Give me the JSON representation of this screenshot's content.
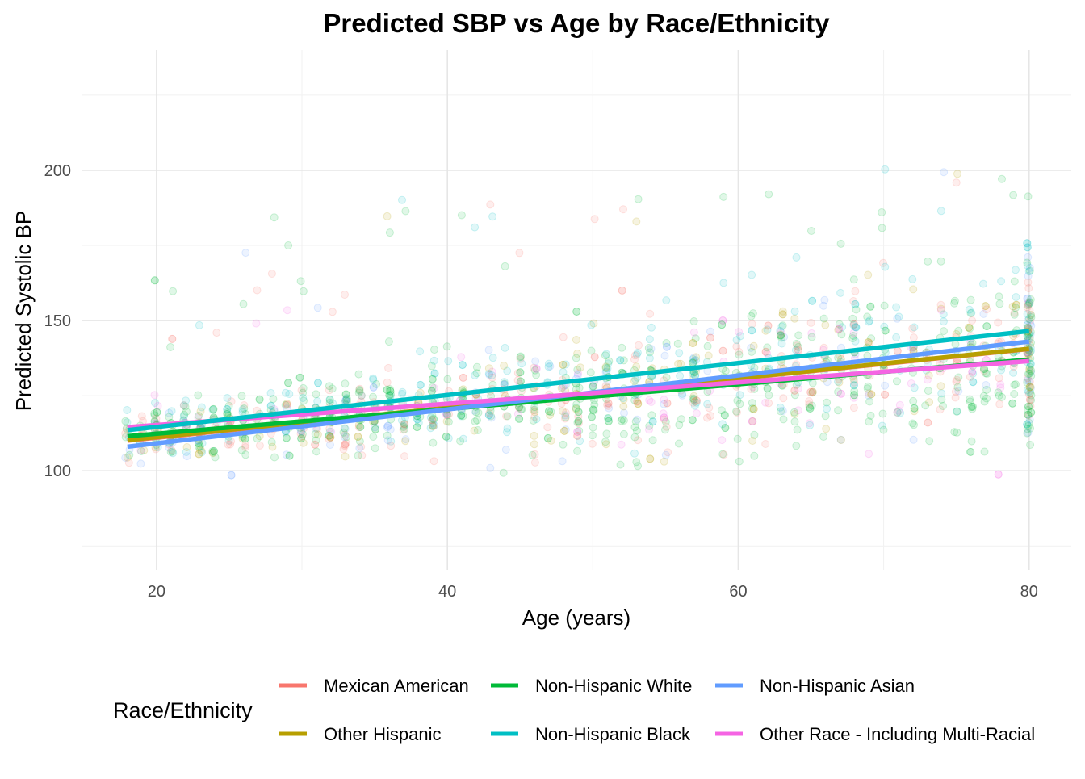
{
  "chart_data": {
    "type": "scatter",
    "title": "Predicted SBP vs Age by Race/Ethnicity",
    "xlabel": "Age (years)",
    "ylabel": "Predicted Systolic BP",
    "xlim": [
      14.9,
      82.9
    ],
    "ylim": [
      67,
      240
    ],
    "x_ticks": [
      20,
      40,
      60,
      80
    ],
    "y_ticks": [
      100,
      150,
      200
    ],
    "grid": true,
    "legend": {
      "title": "Race/Ethnicity",
      "position": "bottom"
    },
    "series": [
      {
        "name": "Mexican American",
        "color": "#F8766D",
        "fit_line": {
          "x": [
            18,
            80
          ],
          "y": [
            110.0,
            140.5
          ]
        }
      },
      {
        "name": "Other Hispanic",
        "color": "#B79F00",
        "fit_line": {
          "x": [
            18,
            80
          ],
          "y": [
            110.2,
            140.6
          ]
        }
      },
      {
        "name": "Non-Hispanic White",
        "color": "#00BA38",
        "fit_line": {
          "x": [
            18,
            80
          ],
          "y": [
            111.5,
            137.0
          ]
        }
      },
      {
        "name": "Non-Hispanic Black",
        "color": "#00BFC4",
        "fit_line": {
          "x": [
            18,
            80
          ],
          "y": [
            113.5,
            146.5
          ]
        }
      },
      {
        "name": "Non-Hispanic Asian",
        "color": "#619CFF",
        "fit_line": {
          "x": [
            18,
            80
          ],
          "y": [
            108.0,
            143.0
          ]
        }
      },
      {
        "name": "Other Race - Including Multi-Racial",
        "color": "#F564E3",
        "fit_line": {
          "x": [
            18,
            80
          ],
          "y": [
            114.5,
            136.5
          ]
        }
      }
    ],
    "scatter_points": {
      "opacity": 0.12,
      "x_range": [
        18,
        80
      ],
      "note_series_weights": [
        0.18,
        0.08,
        0.42,
        0.17,
        0.09,
        0.06
      ]
    }
  }
}
